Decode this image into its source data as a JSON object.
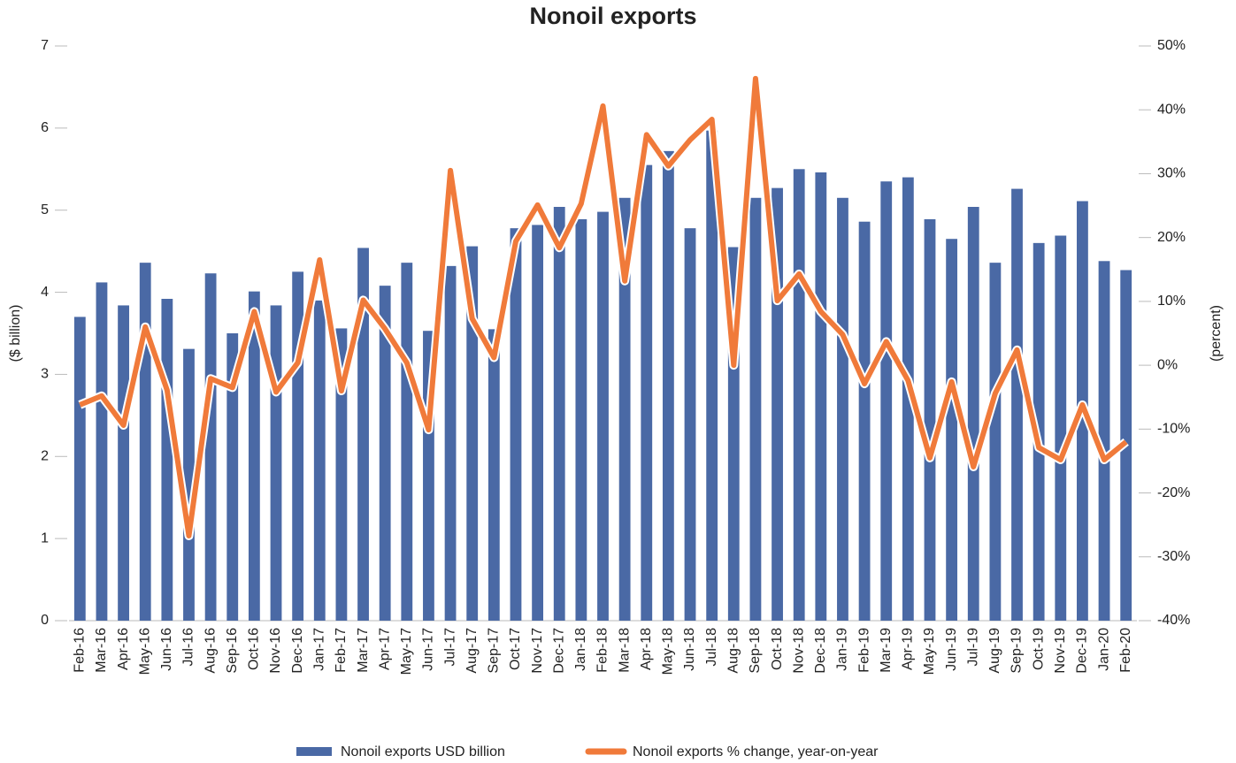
{
  "chart_data": {
    "type": "bar_line",
    "title": "Nonoil exports",
    "ylabel": "($ billion)",
    "y2label": "(percent)",
    "categories": [
      "Feb-16",
      "Mar-16",
      "Apr-16",
      "May-16",
      "Jun-16",
      "Jul-16",
      "Aug-16",
      "Sep-16",
      "Oct-16",
      "Nov-16",
      "Dec-16",
      "Jan-17",
      "Feb-17",
      "Mar-17",
      "Apr-17",
      "May-17",
      "Jun-17",
      "Jul-17",
      "Aug-17",
      "Sep-17",
      "Oct-17",
      "Nov-17",
      "Dec-17",
      "Jan-18",
      "Feb-18",
      "Mar-18",
      "Apr-18",
      "May-18",
      "Jun-18",
      "Jul-18",
      "Aug-18",
      "Sep-18",
      "Oct-18",
      "Nov-18",
      "Dec-18",
      "Jan-19",
      "Feb-19",
      "Mar-19",
      "Apr-19",
      "May-19",
      "Jun-19",
      "Jul-19",
      "Aug-19",
      "Sep-19",
      "Oct-19",
      "Nov-19",
      "Dec-19",
      "Jan-20",
      "Feb-20"
    ],
    "series": [
      {
        "name": "Nonoil exports USD billion",
        "type": "bar",
        "color": "#4a69a5",
        "axis": "y",
        "values": [
          3.7,
          4.12,
          3.84,
          4.36,
          3.92,
          3.31,
          4.23,
          3.5,
          4.01,
          3.84,
          4.25,
          3.9,
          3.56,
          4.54,
          4.08,
          4.36,
          3.53,
          4.32,
          4.56,
          3.55,
          4.78,
          4.82,
          5.04,
          4.89,
          4.98,
          5.15,
          5.55,
          5.72,
          4.78,
          5.97,
          4.55,
          5.15,
          5.27,
          5.5,
          5.46,
          5.15,
          4.86,
          5.35,
          5.4,
          4.89,
          4.65,
          5.04,
          4.36,
          5.26,
          4.6,
          4.69,
          5.11,
          4.38,
          4.27
        ]
      },
      {
        "name": "Nonoil exports % change, year-on-year",
        "type": "line",
        "color": "#f07a3a",
        "axis": "y2",
        "values": [
          -6.2,
          -4.8,
          -9.4,
          6,
          -3.9,
          -26.7,
          -2.1,
          -3.5,
          8.4,
          -4.2,
          0.4,
          16.5,
          -4,
          10.2,
          5.7,
          0.4,
          -10.1,
          30.5,
          7.3,
          1.2,
          19.4,
          25.1,
          18.4,
          25.3,
          40.6,
          13.2,
          36.1,
          31.2,
          35.3,
          38.5,
          0,
          44.9,
          10.1,
          14.3,
          8.4,
          4.8,
          -2.9,
          3.7,
          -2.4,
          -14.5,
          -2.6,
          -15.9,
          -4.4,
          2.4,
          -12.9,
          -14.8,
          -6.2,
          -14.8,
          -12
        ]
      }
    ],
    "ylim": [
      0,
      7
    ],
    "yticks": [
      0,
      1,
      2,
      3,
      4,
      5,
      6,
      7
    ],
    "y2lim": [
      -40,
      50
    ],
    "y2ticks": [
      {
        "value": -40,
        "label": "-40%"
      },
      {
        "value": -30,
        "label": "-30%"
      },
      {
        "value": -20,
        "label": "-20%"
      },
      {
        "value": -10,
        "label": "-10%"
      },
      {
        "value": 0,
        "label": "0%"
      },
      {
        "value": 10,
        "label": "10%"
      },
      {
        "value": 20,
        "label": "20%"
      },
      {
        "value": 30,
        "label": "30%"
      },
      {
        "value": 40,
        "label": "40%"
      },
      {
        "value": 50,
        "label": "50%"
      }
    ],
    "legend": "bottom"
  }
}
